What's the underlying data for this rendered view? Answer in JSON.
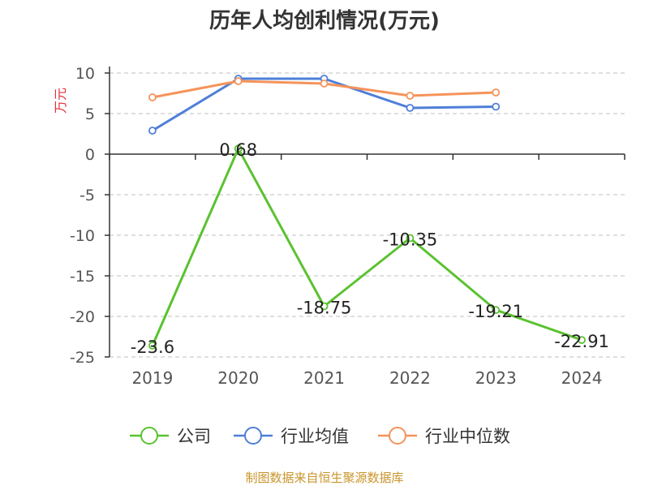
{
  "chart_data": {
    "type": "line",
    "title": "历年人均创利情况(万元)",
    "ylabel": "万元",
    "xlabel": "",
    "ylim": [
      -25,
      10
    ],
    "yticks": [
      10,
      5,
      0,
      -5,
      -10,
      -15,
      -20,
      -25
    ],
    "categories": [
      "2019",
      "2020",
      "2021",
      "2022",
      "2023",
      "2024"
    ],
    "grid": true,
    "legend_position": "bottom",
    "series": [
      {
        "name": "公司",
        "color": "#5ac230",
        "values": [
          -23.6,
          0.68,
          -18.75,
          -10.35,
          -19.21,
          -22.91
        ],
        "labels": [
          "-23.6",
          "0.68",
          "-18.75",
          "-10.35",
          "-19.21",
          "-22.91"
        ]
      },
      {
        "name": "行业均值",
        "color": "#4e7fd8",
        "values": [
          2.9,
          9.3,
          9.3,
          5.7,
          5.85,
          null
        ]
      },
      {
        "name": "行业中位数",
        "color": "#f5935a",
        "values": [
          7.0,
          9.0,
          8.7,
          7.2,
          7.6,
          null
        ]
      }
    ],
    "source": "制图数据来自恒生聚源数据库",
    "colors": {
      "title": "#333333",
      "ylabel": "#e0323c",
      "source": "#c9952b",
      "grid": "#cccccc",
      "axis": "#333333",
      "tick_text": "#555555"
    }
  }
}
